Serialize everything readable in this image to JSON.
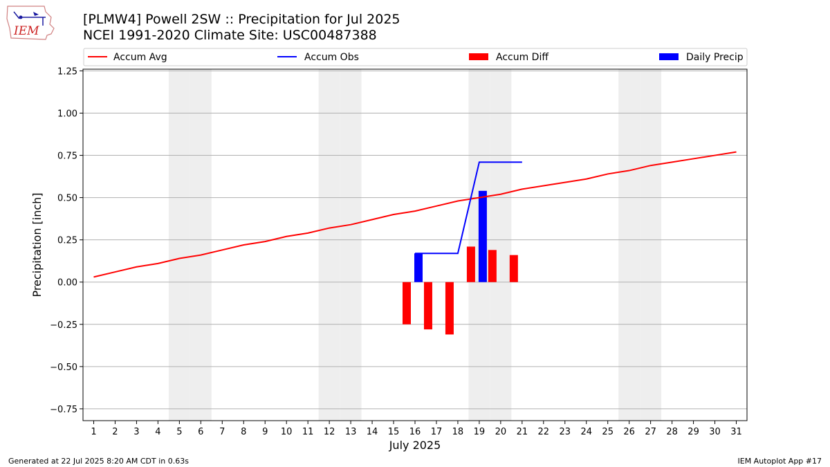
{
  "header": {
    "title_line1": "[PLMW4] Powell 2SW :: Precipitation for Jul 2025",
    "title_line2": "NCEI 1991-2020 Climate Site: USC00487388",
    "logo_text": "IEM"
  },
  "footer": {
    "generated": "Generated at 22 Jul 2025 8:20 AM CDT in 0.63s",
    "app": "IEM Autoplot App #17"
  },
  "colors": {
    "accum_avg": "#ff0000",
    "accum_obs": "#0000ff",
    "accum_diff": "#ff0000",
    "daily_precip": "#0000ff",
    "weekend_band": "#eeeeee",
    "grid": "#b0b0b0"
  },
  "chart_data": {
    "type": "line",
    "xlabel": "July 2025",
    "ylabel": "Precipitation [inch]",
    "x": [
      1,
      2,
      3,
      4,
      5,
      6,
      7,
      8,
      9,
      10,
      11,
      12,
      13,
      14,
      15,
      16,
      17,
      18,
      19,
      20,
      21,
      22,
      23,
      24,
      25,
      26,
      27,
      28,
      29,
      30,
      31
    ],
    "ylim": [
      -0.82,
      1.26
    ],
    "yticks": [
      -0.75,
      -0.5,
      -0.25,
      0.0,
      0.25,
      0.5,
      0.75,
      1.0,
      1.25
    ],
    "ytick_labels": [
      "−0.75",
      "−0.50",
      "−0.25",
      "0.00",
      "0.25",
      "0.50",
      "0.75",
      "1.00",
      "1.25"
    ],
    "grid": "horizontal",
    "legend_position": "top",
    "weekend_days": [
      5,
      6,
      12,
      13,
      19,
      20,
      26,
      27
    ],
    "legend": [
      "Accum Avg",
      "Accum Obs",
      "Accum Diff",
      "Daily Precip"
    ],
    "series": [
      {
        "name": "Accum Avg",
        "kind": "line",
        "x": [
          1,
          2,
          3,
          4,
          5,
          6,
          7,
          8,
          9,
          10,
          11,
          12,
          13,
          14,
          15,
          16,
          17,
          18,
          19,
          20,
          21,
          22,
          23,
          24,
          25,
          26,
          27,
          28,
          29,
          30,
          31
        ],
        "values": [
          0.03,
          0.06,
          0.09,
          0.11,
          0.14,
          0.16,
          0.19,
          0.22,
          0.24,
          0.27,
          0.29,
          0.32,
          0.34,
          0.37,
          0.4,
          0.42,
          0.45,
          0.48,
          0.5,
          0.52,
          0.55,
          0.57,
          0.59,
          0.61,
          0.64,
          0.66,
          0.69,
          0.71,
          0.73,
          0.75,
          0.77
        ]
      },
      {
        "name": "Accum Obs",
        "kind": "line",
        "x": [
          16,
          17,
          18,
          19,
          20,
          21
        ],
        "values": [
          0.17,
          0.17,
          0.17,
          0.71,
          0.71,
          0.71
        ]
      },
      {
        "name": "Accum Diff",
        "kind": "bar",
        "x": [
          16,
          17,
          18,
          19,
          20,
          21
        ],
        "values": [
          -0.25,
          -0.28,
          -0.31,
          0.21,
          0.19,
          0.16
        ]
      },
      {
        "name": "Daily Precip",
        "kind": "bar",
        "x": [
          16,
          19
        ],
        "values": [
          0.17,
          0.54
        ]
      }
    ]
  }
}
